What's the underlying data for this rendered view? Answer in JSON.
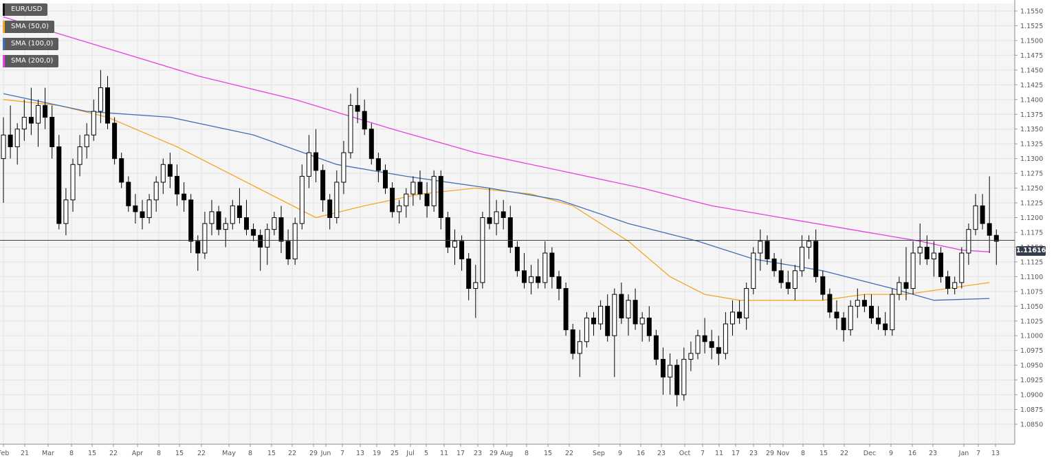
{
  "chart_data": {
    "type": "candlestick",
    "instrument": "EUR/USD",
    "ylim": [
      1.085,
      1.1555
    ],
    "y_ticks": [
      "1.1550",
      "1.1525",
      "1.1500",
      "1.1475",
      "1.1450",
      "1.1425",
      "1.1400",
      "1.1375",
      "1.1350",
      "1.1325",
      "1.1300",
      "1.1275",
      "1.1250",
      "1.1225",
      "1.1200",
      "1.1175",
      "1.1150",
      "1.1125",
      "1.1100",
      "1.1075",
      "1.1050",
      "1.1025",
      "1.1000",
      "1.0975",
      "1.0950",
      "1.0925",
      "1.0900",
      "1.0875",
      "1.0850"
    ],
    "x_ticks": [
      "Feb",
      "21",
      "Mar",
      "8",
      "15",
      "22",
      "Apr",
      "8",
      "15",
      "22",
      "May",
      "8",
      "15",
      "22",
      "29",
      "Jun",
      "7",
      "13",
      "19",
      "25",
      "Jul",
      "5",
      "11",
      "17",
      "23",
      "29",
      "Aug",
      "8",
      "15",
      "22",
      "Sep",
      "9",
      "16",
      "23",
      "Oct",
      "7",
      "11",
      "17",
      "23",
      "29",
      "Nov",
      "8",
      "15",
      "22",
      "Dec",
      "9",
      "16",
      "23",
      "Jan",
      "7",
      "13"
    ],
    "current_price": "1.11616",
    "legend": [
      {
        "label": "EUR/USD",
        "color": "#111111"
      },
      {
        "label": "SMA (50,0)",
        "color": "#f5a623"
      },
      {
        "label": "SMA (100,0)",
        "color": "#3f6fb5"
      },
      {
        "label": "SMA (200,0)",
        "color": "#e83fe0"
      }
    ],
    "candles": [
      [
        1.13,
        1.137,
        1.1225,
        1.134
      ],
      [
        1.134,
        1.139,
        1.13,
        1.132
      ],
      [
        1.132,
        1.136,
        1.129,
        1.135
      ],
      [
        1.135,
        1.14,
        1.133,
        1.137
      ],
      [
        1.137,
        1.142,
        1.134,
        1.136
      ],
      [
        1.136,
        1.14,
        1.132,
        1.139
      ],
      [
        1.139,
        1.142,
        1.135,
        1.137
      ],
      [
        1.137,
        1.139,
        1.13,
        1.132
      ],
      [
        1.132,
        1.134,
        1.118,
        1.119
      ],
      [
        1.119,
        1.125,
        1.117,
        1.123
      ],
      [
        1.123,
        1.13,
        1.121,
        1.129
      ],
      [
        1.129,
        1.134,
        1.127,
        1.132
      ],
      [
        1.132,
        1.136,
        1.13,
        1.134
      ],
      [
        1.134,
        1.14,
        1.133,
        1.138
      ],
      [
        1.138,
        1.145,
        1.136,
        1.142
      ],
      [
        1.142,
        1.144,
        1.135,
        1.136
      ],
      [
        1.136,
        1.137,
        1.129,
        1.13
      ],
      [
        1.13,
        1.131,
        1.125,
        1.126
      ],
      [
        1.126,
        1.127,
        1.121,
        1.122
      ],
      [
        1.122,
        1.124,
        1.119,
        1.121
      ],
      [
        1.121,
        1.123,
        1.118,
        1.12
      ],
      [
        1.12,
        1.124,
        1.119,
        1.123
      ],
      [
        1.123,
        1.127,
        1.121,
        1.126
      ],
      [
        1.126,
        1.13,
        1.124,
        1.129
      ],
      [
        1.129,
        1.131,
        1.125,
        1.127
      ],
      [
        1.127,
        1.129,
        1.122,
        1.124
      ],
      [
        1.124,
        1.126,
        1.121,
        1.123
      ],
      [
        1.123,
        1.124,
        1.114,
        1.116
      ],
      [
        1.116,
        1.117,
        1.111,
        1.114
      ],
      [
        1.114,
        1.121,
        1.113,
        1.119
      ],
      [
        1.119,
        1.123,
        1.117,
        1.121
      ],
      [
        1.121,
        1.122,
        1.117,
        1.118
      ],
      [
        1.118,
        1.12,
        1.115,
        1.119
      ],
      [
        1.119,
        1.123,
        1.118,
        1.122
      ],
      [
        1.122,
        1.125,
        1.119,
        1.12
      ],
      [
        1.12,
        1.123,
        1.117,
        1.118
      ],
      [
        1.118,
        1.119,
        1.116,
        1.117
      ],
      [
        1.117,
        1.118,
        1.111,
        1.115
      ],
      [
        1.115,
        1.119,
        1.112,
        1.118
      ],
      [
        1.118,
        1.121,
        1.117,
        1.12
      ],
      [
        1.12,
        1.122,
        1.114,
        1.116
      ],
      [
        1.116,
        1.118,
        1.112,
        1.113
      ],
      [
        1.113,
        1.12,
        1.112,
        1.119
      ],
      [
        1.119,
        1.129,
        1.118,
        1.127
      ],
      [
        1.127,
        1.134,
        1.125,
        1.131
      ],
      [
        1.131,
        1.135,
        1.126,
        1.128
      ],
      [
        1.128,
        1.129,
        1.121,
        1.123
      ],
      [
        1.123,
        1.124,
        1.118,
        1.12
      ],
      [
        1.12,
        1.128,
        1.119,
        1.126
      ],
      [
        1.126,
        1.133,
        1.124,
        1.131
      ],
      [
        1.131,
        1.141,
        1.13,
        1.139
      ],
      [
        1.139,
        1.142,
        1.136,
        1.138
      ],
      [
        1.138,
        1.14,
        1.134,
        1.135
      ],
      [
        1.135,
        1.136,
        1.129,
        1.13
      ],
      [
        1.13,
        1.131,
        1.126,
        1.128
      ],
      [
        1.128,
        1.129,
        1.124,
        1.125
      ],
      [
        1.125,
        1.126,
        1.12,
        1.121
      ],
      [
        1.121,
        1.123,
        1.119,
        1.122
      ],
      [
        1.122,
        1.125,
        1.12,
        1.124
      ],
      [
        1.124,
        1.127,
        1.122,
        1.126
      ],
      [
        1.126,
        1.128,
        1.123,
        1.124
      ],
      [
        1.124,
        1.126,
        1.12,
        1.122
      ],
      [
        1.122,
        1.128,
        1.121,
        1.127
      ],
      [
        1.127,
        1.128,
        1.118,
        1.12
      ],
      [
        1.12,
        1.121,
        1.114,
        1.115
      ],
      [
        1.115,
        1.118,
        1.112,
        1.116
      ],
      [
        1.116,
        1.117,
        1.111,
        1.113
      ],
      [
        1.113,
        1.114,
        1.106,
        1.108
      ],
      [
        1.108,
        1.112,
        1.103,
        1.109
      ],
      [
        1.109,
        1.121,
        1.108,
        1.12
      ],
      [
        1.12,
        1.125,
        1.118,
        1.119
      ],
      [
        1.119,
        1.123,
        1.117,
        1.121
      ],
      [
        1.121,
        1.123,
        1.118,
        1.12
      ],
      [
        1.12,
        1.122,
        1.114,
        1.115
      ],
      [
        1.115,
        1.116,
        1.11,
        1.111
      ],
      [
        1.111,
        1.114,
        1.108,
        1.109
      ],
      [
        1.109,
        1.112,
        1.107,
        1.11
      ],
      [
        1.11,
        1.113,
        1.108,
        1.109
      ],
      [
        1.109,
        1.116,
        1.108,
        1.114
      ],
      [
        1.114,
        1.115,
        1.108,
        1.11
      ],
      [
        1.11,
        1.111,
        1.106,
        1.108
      ],
      [
        1.108,
        1.109,
        1.1,
        1.101
      ],
      [
        1.101,
        1.102,
        1.096,
        1.097
      ],
      [
        1.097,
        1.101,
        1.093,
        1.099
      ],
      [
        1.099,
        1.104,
        1.098,
        1.103
      ],
      [
        1.103,
        1.104,
        1.1,
        1.102
      ],
      [
        1.102,
        1.106,
        1.101,
        1.105
      ],
      [
        1.105,
        1.107,
        1.099,
        1.1
      ],
      [
        1.1,
        1.108,
        1.093,
        1.107
      ],
      [
        1.107,
        1.109,
        1.102,
        1.103
      ],
      [
        1.103,
        1.107,
        1.1,
        1.106
      ],
      [
        1.106,
        1.108,
        1.101,
        1.102
      ],
      [
        1.102,
        1.104,
        1.099,
        1.103
      ],
      [
        1.103,
        1.105,
        1.099,
        1.1
      ],
      [
        1.1,
        1.101,
        1.095,
        1.096
      ],
      [
        1.096,
        1.098,
        1.09,
        1.093
      ],
      [
        1.093,
        1.097,
        1.09,
        1.095
      ],
      [
        1.095,
        1.096,
        1.088,
        1.09
      ],
      [
        1.09,
        1.098,
        1.089,
        1.096
      ],
      [
        1.096,
        1.099,
        1.094,
        1.097
      ],
      [
        1.097,
        1.101,
        1.096,
        1.1
      ],
      [
        1.1,
        1.103,
        1.097,
        1.099
      ],
      [
        1.099,
        1.101,
        1.096,
        1.098
      ],
      [
        1.098,
        1.1,
        1.095,
        1.097
      ],
      [
        1.097,
        1.104,
        1.096,
        1.102
      ],
      [
        1.102,
        1.106,
        1.1,
        1.104
      ],
      [
        1.104,
        1.106,
        1.102,
        1.103
      ],
      [
        1.103,
        1.109,
        1.101,
        1.108
      ],
      [
        1.108,
        1.115,
        1.107,
        1.114
      ],
      [
        1.114,
        1.118,
        1.111,
        1.116
      ],
      [
        1.116,
        1.117,
        1.112,
        1.113
      ],
      [
        1.113,
        1.114,
        1.11,
        1.111
      ],
      [
        1.111,
        1.113,
        1.108,
        1.109
      ],
      [
        1.109,
        1.111,
        1.107,
        1.108
      ],
      [
        1.108,
        1.112,
        1.106,
        1.111
      ],
      [
        1.111,
        1.117,
        1.11,
        1.115
      ],
      [
        1.115,
        1.117,
        1.113,
        1.116
      ],
      [
        1.116,
        1.118,
        1.109,
        1.11
      ],
      [
        1.11,
        1.111,
        1.106,
        1.107
      ],
      [
        1.107,
        1.108,
        1.103,
        1.104
      ],
      [
        1.104,
        1.106,
        1.101,
        1.103
      ],
      [
        1.103,
        1.104,
        1.099,
        1.101
      ],
      [
        1.101,
        1.106,
        1.1,
        1.105
      ],
      [
        1.105,
        1.108,
        1.103,
        1.106
      ],
      [
        1.106,
        1.107,
        1.104,
        1.105
      ],
      [
        1.105,
        1.107,
        1.102,
        1.103
      ],
      [
        1.103,
        1.105,
        1.101,
        1.102
      ],
      [
        1.102,
        1.104,
        1.1,
        1.101
      ],
      [
        1.101,
        1.108,
        1.1,
        1.107
      ],
      [
        1.107,
        1.11,
        1.106,
        1.109
      ],
      [
        1.109,
        1.115,
        1.106,
        1.108
      ],
      [
        1.108,
        1.116,
        1.107,
        1.114
      ],
      [
        1.114,
        1.119,
        1.112,
        1.115
      ],
      [
        1.115,
        1.117,
        1.112,
        1.113
      ],
      [
        1.113,
        1.116,
        1.11,
        1.114
      ],
      [
        1.114,
        1.115,
        1.109,
        1.11
      ],
      [
        1.11,
        1.111,
        1.107,
        1.108
      ],
      [
        1.108,
        1.11,
        1.107,
        1.109
      ],
      [
        1.109,
        1.115,
        1.108,
        1.114
      ],
      [
        1.114,
        1.119,
        1.112,
        1.118
      ],
      [
        1.118,
        1.124,
        1.117,
        1.122
      ],
      [
        1.122,
        1.124,
        1.118,
        1.119
      ],
      [
        1.119,
        1.127,
        1.114,
        1.117
      ],
      [
        1.117,
        1.118,
        1.112,
        1.116
      ]
    ],
    "sma": [
      {
        "name": "SMA (50,0)",
        "color": "#f5a623",
        "points": [
          [
            0,
            1.14
          ],
          [
            8,
            1.139
          ],
          [
            15,
            1.137
          ],
          [
            25,
            1.132
          ],
          [
            35,
            1.126
          ],
          [
            45,
            1.12
          ],
          [
            52,
            1.122
          ],
          [
            60,
            1.124
          ],
          [
            68,
            1.125
          ],
          [
            76,
            1.124
          ],
          [
            82,
            1.122
          ],
          [
            90,
            1.116
          ],
          [
            96,
            1.11
          ],
          [
            101,
            1.107
          ],
          [
            106,
            1.106
          ],
          [
            112,
            1.106
          ],
          [
            118,
            1.106
          ],
          [
            124,
            1.107
          ],
          [
            130,
            1.107
          ],
          [
            136,
            1.108
          ],
          [
            142,
            1.109
          ]
        ]
      },
      {
        "name": "SMA (100,0)",
        "color": "#3f6fb5",
        "points": [
          [
            0,
            1.141
          ],
          [
            12,
            1.138
          ],
          [
            24,
            1.137
          ],
          [
            36,
            1.134
          ],
          [
            48,
            1.129
          ],
          [
            58,
            1.127
          ],
          [
            70,
            1.125
          ],
          [
            80,
            1.123
          ],
          [
            90,
            1.119
          ],
          [
            100,
            1.116
          ],
          [
            108,
            1.113
          ],
          [
            118,
            1.111
          ],
          [
            128,
            1.108
          ],
          [
            134,
            1.106
          ],
          [
            142,
            1.1063
          ]
        ]
      },
      {
        "name": "SMA (200,0)",
        "color": "#e83fe0",
        "points": [
          [
            0,
            1.154
          ],
          [
            14,
            1.149
          ],
          [
            28,
            1.144
          ],
          [
            42,
            1.14
          ],
          [
            56,
            1.135
          ],
          [
            68,
            1.131
          ],
          [
            80,
            1.128
          ],
          [
            92,
            1.125
          ],
          [
            102,
            1.122
          ],
          [
            112,
            1.12
          ],
          [
            122,
            1.118
          ],
          [
            132,
            1.116
          ],
          [
            138,
            1.1145
          ],
          [
            142,
            1.1142
          ]
        ]
      }
    ]
  }
}
